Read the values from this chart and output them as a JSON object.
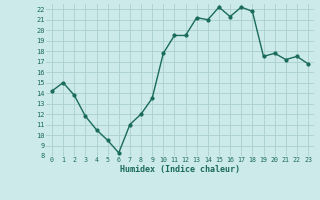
{
  "x": [
    0,
    1,
    2,
    3,
    4,
    5,
    6,
    7,
    8,
    9,
    10,
    11,
    12,
    13,
    14,
    15,
    16,
    17,
    18,
    19,
    20,
    21,
    22,
    23
  ],
  "y": [
    14.2,
    15.0,
    13.8,
    11.8,
    10.5,
    9.5,
    8.3,
    11.0,
    12.0,
    13.5,
    17.8,
    19.5,
    19.5,
    21.2,
    21.0,
    22.2,
    21.3,
    22.2,
    21.8,
    17.5,
    17.8,
    17.2,
    17.5,
    16.8
  ],
  "xlabel": "Humidex (Indice chaleur)",
  "line_color": "#1a6b5a",
  "marker_color": "#1a6b5a",
  "bg_color": "#cceaea",
  "grid_color": "#aacfcf",
  "tick_label_color": "#1a6b5a",
  "ylim": [
    8,
    22.5
  ],
  "xlim": [
    -0.5,
    23.5
  ],
  "yticks": [
    8,
    9,
    10,
    11,
    12,
    13,
    14,
    15,
    16,
    17,
    18,
    19,
    20,
    21,
    22
  ],
  "xticks": [
    0,
    1,
    2,
    3,
    4,
    5,
    6,
    7,
    8,
    9,
    10,
    11,
    12,
    13,
    14,
    15,
    16,
    17,
    18,
    19,
    20,
    21,
    22,
    23
  ],
  "xtick_labels": [
    "0",
    "1",
    "2",
    "3",
    "4",
    "5",
    "6",
    "7",
    "8",
    "9",
    "10",
    "11",
    "12",
    "13",
    "14",
    "15",
    "16",
    "17",
    "18",
    "19",
    "20",
    "21",
    "22",
    "23"
  ],
  "ytick_labels": [
    "8",
    "9",
    "10",
    "11",
    "12",
    "13",
    "14",
    "15",
    "16",
    "17",
    "18",
    "19",
    "20",
    "21",
    "22"
  ]
}
